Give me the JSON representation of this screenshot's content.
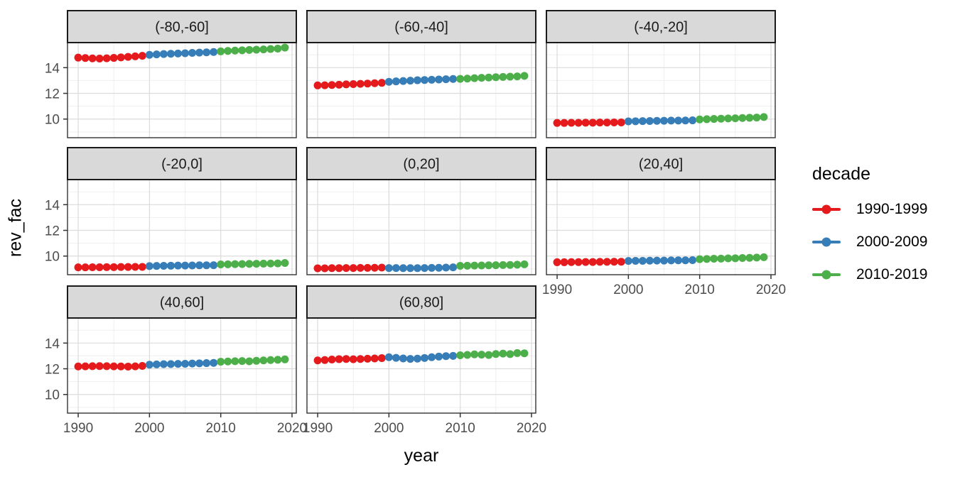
{
  "chart_data": {
    "type": "scatter",
    "xlabel": "year",
    "ylabel": "rev_fac",
    "legend_title": "decade",
    "legend_position": "right",
    "grid": true,
    "x_ticks": [
      1990,
      2000,
      2010,
      2020
    ],
    "y_ticks": [
      10,
      12,
      14
    ],
    "x_minor": [
      1995,
      2005,
      2015
    ],
    "y_minor": [
      9,
      11,
      13,
      15
    ],
    "xlim": [
      1988.5,
      2020.6
    ],
    "ylim": [
      8.55,
      15.95
    ],
    "theme": {
      "strip_bg": "#D9D9D9",
      "strip_border": "#1A1A1A",
      "strip_text": "#1A1A1A",
      "panel_bg": "#FFFFFF",
      "panel_border": "#333333",
      "grid_major": "#DBDBDB",
      "grid_minor": "#EFEFEF",
      "axis_text": "#4D4D4D",
      "tick_mark": "#333333"
    },
    "years": [
      1990,
      1991,
      1992,
      1993,
      1994,
      1995,
      1996,
      1997,
      1998,
      1999,
      2000,
      2001,
      2002,
      2003,
      2004,
      2005,
      2006,
      2007,
      2008,
      2009,
      2010,
      2011,
      2012,
      2013,
      2014,
      2015,
      2016,
      2017,
      2018,
      2019
    ],
    "series": [
      {
        "name": "1990-1999",
        "color": "#E41A1C",
        "year_range": [
          1990,
          1999
        ]
      },
      {
        "name": "2000-2009",
        "color": "#377EB8",
        "year_range": [
          2000,
          2009
        ]
      },
      {
        "name": "2010-2019",
        "color": "#4DAF4A",
        "year_range": [
          2010,
          2019
        ]
      }
    ],
    "facets": [
      {
        "label": "(-80,-60]",
        "values": [
          14.78,
          14.75,
          14.72,
          14.71,
          14.73,
          14.76,
          14.8,
          14.84,
          14.88,
          14.92,
          15.0,
          15.03,
          15.06,
          15.08,
          15.1,
          15.12,
          15.15,
          15.17,
          15.19,
          15.22,
          15.27,
          15.3,
          15.33,
          15.35,
          15.38,
          15.4,
          15.42,
          15.45,
          15.48,
          15.56
        ]
      },
      {
        "label": "(-60,-40]",
        "values": [
          12.62,
          12.63,
          12.65,
          12.67,
          12.7,
          12.72,
          12.74,
          12.76,
          12.79,
          12.82,
          12.9,
          12.93,
          12.96,
          12.99,
          13.02,
          13.04,
          13.06,
          13.08,
          13.1,
          13.12,
          13.13,
          13.15,
          13.18,
          13.21,
          13.23,
          13.26,
          13.28,
          13.3,
          13.32,
          13.36
        ]
      },
      {
        "label": "(-40,-20]",
        "values": [
          9.7,
          9.7,
          9.71,
          9.71,
          9.72,
          9.72,
          9.73,
          9.73,
          9.74,
          9.74,
          9.82,
          9.83,
          9.84,
          9.85,
          9.86,
          9.87,
          9.88,
          9.88,
          9.89,
          9.9,
          9.97,
          9.99,
          10.01,
          10.03,
          10.05,
          10.06,
          10.08,
          10.1,
          10.12,
          10.16
        ]
      },
      {
        "label": "(-20,0]",
        "values": [
          9.12,
          9.12,
          9.13,
          9.13,
          9.14,
          9.14,
          9.15,
          9.15,
          9.16,
          9.16,
          9.22,
          9.23,
          9.24,
          9.25,
          9.26,
          9.26,
          9.27,
          9.28,
          9.28,
          9.29,
          9.35,
          9.36,
          9.37,
          9.38,
          9.39,
          9.4,
          9.41,
          9.42,
          9.43,
          9.46
        ]
      },
      {
        "label": "(0,20]",
        "values": [
          9.05,
          9.05,
          9.06,
          9.06,
          9.07,
          9.07,
          9.08,
          9.08,
          9.09,
          9.1,
          9.07,
          9.07,
          9.06,
          9.06,
          9.06,
          9.07,
          9.08,
          9.09,
          9.1,
          9.12,
          9.24,
          9.25,
          9.26,
          9.27,
          9.28,
          9.29,
          9.3,
          9.31,
          9.33,
          9.36
        ]
      },
      {
        "label": "(20,40]",
        "values": [
          9.52,
          9.52,
          9.53,
          9.53,
          9.54,
          9.54,
          9.55,
          9.55,
          9.56,
          9.56,
          9.62,
          9.63,
          9.63,
          9.64,
          9.65,
          9.65,
          9.66,
          9.67,
          9.67,
          9.68,
          9.76,
          9.77,
          9.79,
          9.8,
          9.82,
          9.83,
          9.85,
          9.86,
          9.88,
          9.91
        ]
      },
      {
        "label": "(40,60]",
        "values": [
          12.18,
          12.19,
          12.2,
          12.21,
          12.2,
          12.19,
          12.18,
          12.17,
          12.19,
          12.22,
          12.32,
          12.34,
          12.36,
          12.37,
          12.38,
          12.39,
          12.41,
          12.42,
          12.44,
          12.46,
          12.55,
          12.57,
          12.59,
          12.6,
          12.58,
          12.62,
          12.65,
          12.68,
          12.7,
          12.73
        ]
      },
      {
        "label": "(60,80]",
        "values": [
          12.65,
          12.68,
          12.72,
          12.75,
          12.76,
          12.74,
          12.76,
          12.78,
          12.8,
          12.83,
          12.9,
          12.85,
          12.8,
          12.77,
          12.79,
          12.84,
          12.9,
          12.95,
          12.98,
          13.0,
          13.05,
          13.08,
          13.12,
          13.1,
          13.07,
          13.15,
          13.18,
          13.14,
          13.22,
          13.2
        ]
      }
    ]
  }
}
